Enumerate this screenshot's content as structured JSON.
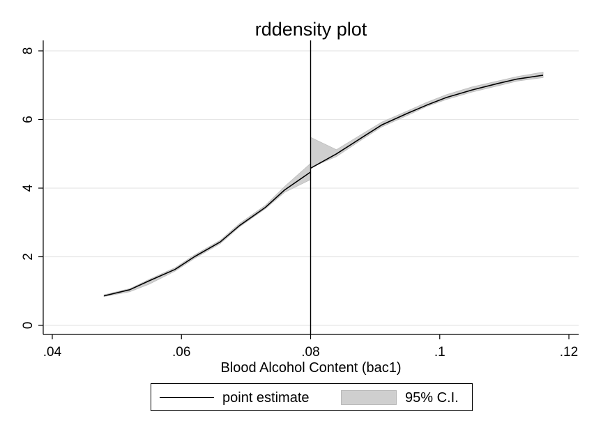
{
  "chart_data": {
    "type": "line",
    "title": "rddensity plot",
    "xlabel": "Blood Alcohol Content (bac1)",
    "ylabel": "",
    "xlim": [
      0.04,
      0.12
    ],
    "ylim": [
      0,
      8
    ],
    "x_ticks": [
      0.04,
      0.06,
      0.08,
      0.1,
      0.12
    ],
    "x_tick_labels": [
      ".04",
      ".06",
      ".08",
      ".1",
      ".12"
    ],
    "y_ticks": [
      0,
      2,
      4,
      6,
      8
    ],
    "y_tick_labels": [
      "0",
      "2",
      "4",
      "6",
      "8"
    ],
    "grid": "horizontal",
    "cutoff": 0.08,
    "legend_position": "bottom",
    "series": [
      {
        "name": "point estimate",
        "segments": [
          {
            "x": [
              0.048,
              0.052,
              0.055,
              0.059,
              0.062,
              0.066,
              0.069,
              0.073,
              0.076,
              0.08
            ],
            "y": [
              0.86,
              1.04,
              1.3,
              1.63,
              2.0,
              2.43,
              2.91,
              3.44,
              3.95,
              4.47
            ]
          },
          {
            "x": [
              0.08,
              0.084,
              0.088,
              0.091,
              0.095,
              0.098,
              0.101,
              0.105,
              0.109,
              0.112,
              0.116
            ],
            "y": [
              4.58,
              5.0,
              5.48,
              5.84,
              6.18,
              6.42,
              6.64,
              6.86,
              7.05,
              7.18,
              7.29
            ]
          }
        ]
      },
      {
        "name": "95% C.I.",
        "segments": [
          {
            "x": [
              0.048,
              0.052,
              0.055,
              0.059,
              0.062,
              0.066,
              0.069,
              0.073,
              0.076,
              0.08
            ],
            "lower": [
              0.84,
              0.98,
              1.2,
              1.58,
              1.95,
              2.38,
              2.87,
              3.4,
              3.88,
              4.25
            ],
            "upper": [
              0.89,
              1.07,
              1.34,
              1.68,
              2.05,
              2.48,
              2.97,
              3.5,
              4.05,
              4.72
            ]
          },
          {
            "x": [
              0.08,
              0.084,
              0.088,
              0.091,
              0.095,
              0.098,
              0.101,
              0.105,
              0.109,
              0.112,
              0.116
            ],
            "lower": [
              4.6,
              4.92,
              5.42,
              5.78,
              6.12,
              6.38,
              6.58,
              6.8,
              6.98,
              7.12,
              7.22
            ],
            "upper": [
              5.48,
              5.12,
              5.58,
              5.92,
              6.25,
              6.5,
              6.72,
              6.95,
              7.12,
              7.25,
              7.38
            ]
          }
        ]
      }
    ],
    "colors": {
      "line": "#000000",
      "ci_fill": "#cfcfcf",
      "grid": "#e6e6e6"
    }
  }
}
